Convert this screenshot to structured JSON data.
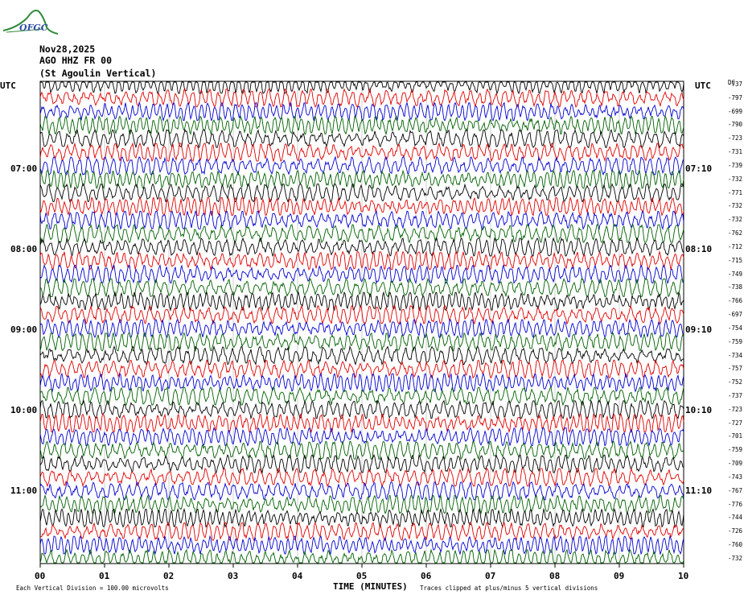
{
  "logo": {
    "text": "OFGC",
    "icon": "mountain-logo-icon"
  },
  "header": {
    "date": "Nov28,2025",
    "station": "AGO HHZ FR 00",
    "location": "(St Agoulin Vertical)"
  },
  "left_axis": {
    "title": "UTC",
    "ticks": [
      "07:00",
      "08:00",
      "09:00",
      "10:00",
      "11:00"
    ]
  },
  "right_axis": {
    "title": "UTC",
    "ticks": [
      "07:10",
      "08:10",
      "09:10",
      "10:10",
      "11:10"
    ],
    "dc_title": "DC"
  },
  "chart_data": {
    "type": "line",
    "title": "",
    "xlabel": "TIME (MINUTES)",
    "x_ticks": [
      "00",
      "01",
      "02",
      "03",
      "04",
      "05",
      "06",
      "07",
      "08",
      "09",
      "10"
    ],
    "xlim": [
      0,
      10
    ],
    "trace_minutes": 10,
    "trace_colors": [
      "#000000",
      "#e00000",
      "#0000d0",
      "#006000"
    ],
    "dc_offsets": [
      "-737",
      "-797",
      "-699",
      "-790",
      "-723",
      "-731",
      "-739",
      "-732",
      "-771",
      "-732",
      "-732",
      "-762",
      "-712",
      "-715",
      "-749",
      "-738",
      "-766",
      "-697",
      "-754",
      "-759",
      "-734",
      "-757",
      "-752",
      "-737",
      "-723",
      "-727",
      "-701",
      "-759",
      "-709",
      "-743",
      "-767",
      "-776",
      "-744",
      "-726",
      "-760",
      "-732"
    ],
    "vertical_division": "Each Vertical Division =  100.00 microvolts",
    "clipping_note": "Traces clipped at plus/minus 5 vertical divisions"
  },
  "colors": {
    "grid": "#b0b0b0",
    "background": "#ffffff"
  }
}
